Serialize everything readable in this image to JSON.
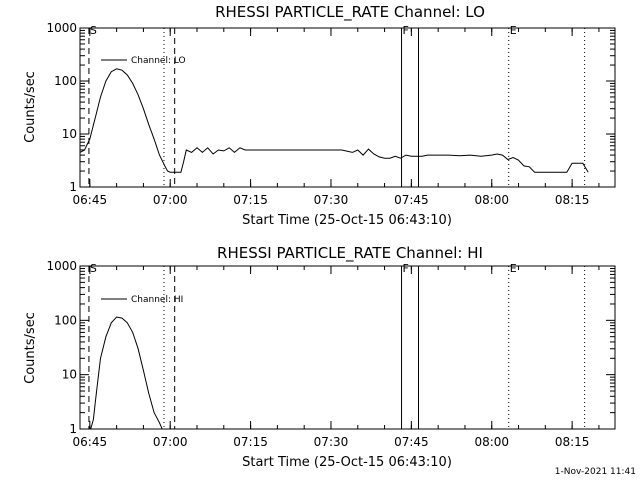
{
  "footer": {
    "timestamp": "1-Nov-2021 11:41"
  },
  "chart_data": [
    {
      "type": "line",
      "title": "RHESSI PARTICLE_RATE Channel: LO",
      "xlabel": "Start Time (25-Oct-15 06:43:10)",
      "ylabel": "Counts/sec",
      "yscale": "log",
      "ylim": [
        1,
        1000
      ],
      "xlim": [
        "06:43:10",
        "08:23:00"
      ],
      "grid": false,
      "legend_placement": "top-left",
      "xticks": [
        "06:45",
        "07:00",
        "07:15",
        "07:30",
        "07:45",
        "08:00",
        "08:15"
      ],
      "yticks": [
        "1",
        "10",
        "100",
        "1000"
      ],
      "markers": [
        {
          "label": "S",
          "time": "06:44:50",
          "style": "dashed"
        },
        {
          "label": "",
          "time": "06:58:50",
          "style": "dotted"
        },
        {
          "label": "",
          "time": "07:00:50",
          "style": "dashed"
        },
        {
          "label": "F",
          "time": "07:43:10",
          "style": "solid"
        },
        {
          "label": "",
          "time": "07:46:20",
          "style": "solid"
        },
        {
          "label": "E",
          "time": "08:03:10",
          "style": "dotted"
        },
        {
          "label": "",
          "time": "08:17:20",
          "style": "dotted"
        }
      ],
      "series": [
        {
          "name": "Channel: LO",
          "x": [
            "06:43:10",
            "06:44:00",
            "06:45:00",
            "06:46:00",
            "06:47:00",
            "06:48:00",
            "06:49:00",
            "06:50:00",
            "06:51:00",
            "06:52:00",
            "06:53:00",
            "06:54:00",
            "06:55:00",
            "06:56:00",
            "06:57:00",
            "06:58:00",
            "06:59:00",
            "06:59:30",
            "07:00:00",
            "07:01:00",
            "07:02:00",
            "07:02:30",
            "07:03:00",
            "07:04:00",
            "07:05:00",
            "07:06:00",
            "07:07:00",
            "07:08:00",
            "07:09:00",
            "07:10:00",
            "07:11:00",
            "07:12:00",
            "07:13:00",
            "07:14:00",
            "07:15:00",
            "07:16:00",
            "07:17:00",
            "07:18:00",
            "07:19:00",
            "07:20:00",
            "07:22:00",
            "07:24:00",
            "07:26:00",
            "07:28:00",
            "07:30:00",
            "07:32:00",
            "07:34:00",
            "07:35:00",
            "07:36:00",
            "07:37:00",
            "07:38:00",
            "07:39:00",
            "07:40:00",
            "07:41:00",
            "07:42:00",
            "07:43:00",
            "07:44:00",
            "07:45:00",
            "07:46:00",
            "07:47:00",
            "07:48:00",
            "07:50:00",
            "07:52:00",
            "07:54:00",
            "07:56:00",
            "07:58:00",
            "08:00:00",
            "08:01:00",
            "08:02:00",
            "08:03:00",
            "08:04:00",
            "08:05:00",
            "08:06:00",
            "08:07:00",
            "08:08:00",
            "08:10:00",
            "08:12:00",
            "08:13:00",
            "08:14:00",
            "08:15:00",
            "08:16:00",
            "08:17:00",
            "08:18:00"
          ],
          "y": [
            4.5,
            5,
            8,
            20,
            50,
            100,
            150,
            170,
            160,
            130,
            90,
            55,
            30,
            15,
            8,
            4,
            2.5,
            2,
            1.9,
            1.9,
            1.9,
            3,
            5,
            4.5,
            5.5,
            4.5,
            5.5,
            4.2,
            5,
            4.8,
            5.5,
            4.5,
            5.5,
            5,
            5,
            5,
            5,
            5,
            5,
            5,
            5,
            5,
            5,
            5,
            5,
            5,
            4.5,
            5,
            4,
            5.2,
            4.2,
            3.7,
            3.5,
            3.5,
            3.8,
            3.5,
            4,
            3.8,
            3.8,
            3.8,
            4,
            4,
            4,
            3.9,
            4,
            3.8,
            4,
            4.2,
            4,
            3.3,
            3.6,
            3.2,
            2.5,
            2.4,
            1.9,
            1.9,
            1.9,
            1.9,
            1.9,
            2.8,
            2.8,
            2.8,
            1.9
          ]
        }
      ]
    },
    {
      "type": "line",
      "title": "RHESSI PARTICLE_RATE Channel: HI",
      "xlabel": "Start Time (25-Oct-15 06:43:10)",
      "ylabel": "Counts/sec",
      "yscale": "log",
      "ylim": [
        1,
        1000
      ],
      "xlim": [
        "06:43:10",
        "08:23:00"
      ],
      "grid": false,
      "legend_placement": "top-left",
      "xticks": [
        "06:45",
        "07:00",
        "07:15",
        "07:30",
        "07:45",
        "08:00",
        "08:15"
      ],
      "yticks": [
        "1",
        "10",
        "100",
        "1000"
      ],
      "markers": [
        {
          "label": "S",
          "time": "06:44:50",
          "style": "dashed"
        },
        {
          "label": "",
          "time": "06:58:50",
          "style": "dotted"
        },
        {
          "label": "",
          "time": "07:00:50",
          "style": "dashed"
        },
        {
          "label": "F",
          "time": "07:43:10",
          "style": "solid"
        },
        {
          "label": "",
          "time": "07:46:20",
          "style": "solid"
        },
        {
          "label": "E",
          "time": "08:03:10",
          "style": "dotted"
        },
        {
          "label": "",
          "time": "08:17:20",
          "style": "dotted"
        }
      ],
      "series": [
        {
          "name": "Channel: HI",
          "x": [
            "06:45:10",
            "06:45:40",
            "06:46:00",
            "06:46:30",
            "06:47:00",
            "06:48:00",
            "06:49:00",
            "06:50:00",
            "06:51:00",
            "06:52:00",
            "06:53:00",
            "06:54:00",
            "06:55:00",
            "06:56:00",
            "06:57:00",
            "06:58:00",
            "06:58:30"
          ],
          "y": [
            1,
            1.5,
            3,
            8,
            20,
            50,
            90,
            115,
            110,
            90,
            60,
            30,
            12,
            4.5,
            2,
            1.3,
            1
          ]
        }
      ]
    }
  ]
}
